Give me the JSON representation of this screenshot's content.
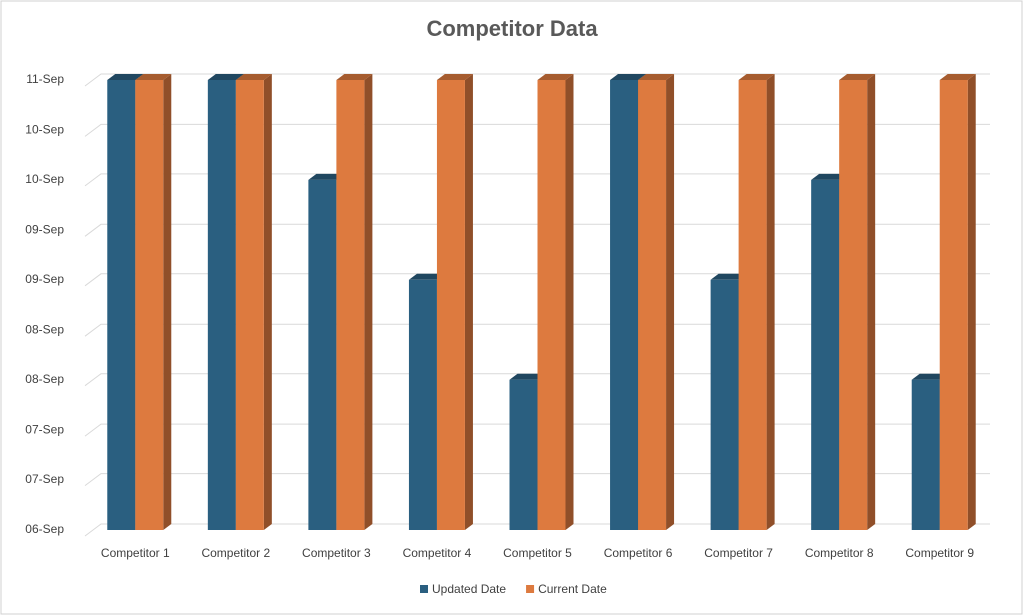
{
  "chart_data": {
    "type": "bar3d",
    "title": "Competitor Data",
    "categories": [
      "Competitor 1",
      "Competitor 2",
      "Competitor 3",
      "Competitor 4",
      "Competitor 5",
      "Competitor 6",
      "Competitor 7",
      "Competitor 8",
      "Competitor 9"
    ],
    "series": [
      {
        "name": "Updated Date",
        "color": "#2a5f80",
        "values": [
          11,
          11,
          9.89,
          8.78,
          7.67,
          11,
          8.78,
          9.89,
          7.67
        ]
      },
      {
        "name": "Current Date",
        "color": "#dd7a3f",
        "values": [
          11,
          11,
          11,
          11,
          11,
          11,
          11,
          11,
          11
        ]
      }
    ],
    "ylim": [
      6,
      11
    ],
    "yticks": [
      {
        "value": 6,
        "label": "06-Sep"
      },
      {
        "value": 6.56,
        "label": "07-Sep"
      },
      {
        "value": 7.11,
        "label": "07-Sep"
      },
      {
        "value": 7.67,
        "label": "08-Sep"
      },
      {
        "value": 8.22,
        "label": "08-Sep"
      },
      {
        "value": 8.78,
        "label": "09-Sep"
      },
      {
        "value": 9.33,
        "label": "09-Sep"
      },
      {
        "value": 9.89,
        "label": "10-Sep"
      },
      {
        "value": 10.44,
        "label": "10-Sep"
      },
      {
        "value": 11,
        "label": "11-Sep"
      }
    ],
    "grid": true,
    "legend": "bottom"
  }
}
